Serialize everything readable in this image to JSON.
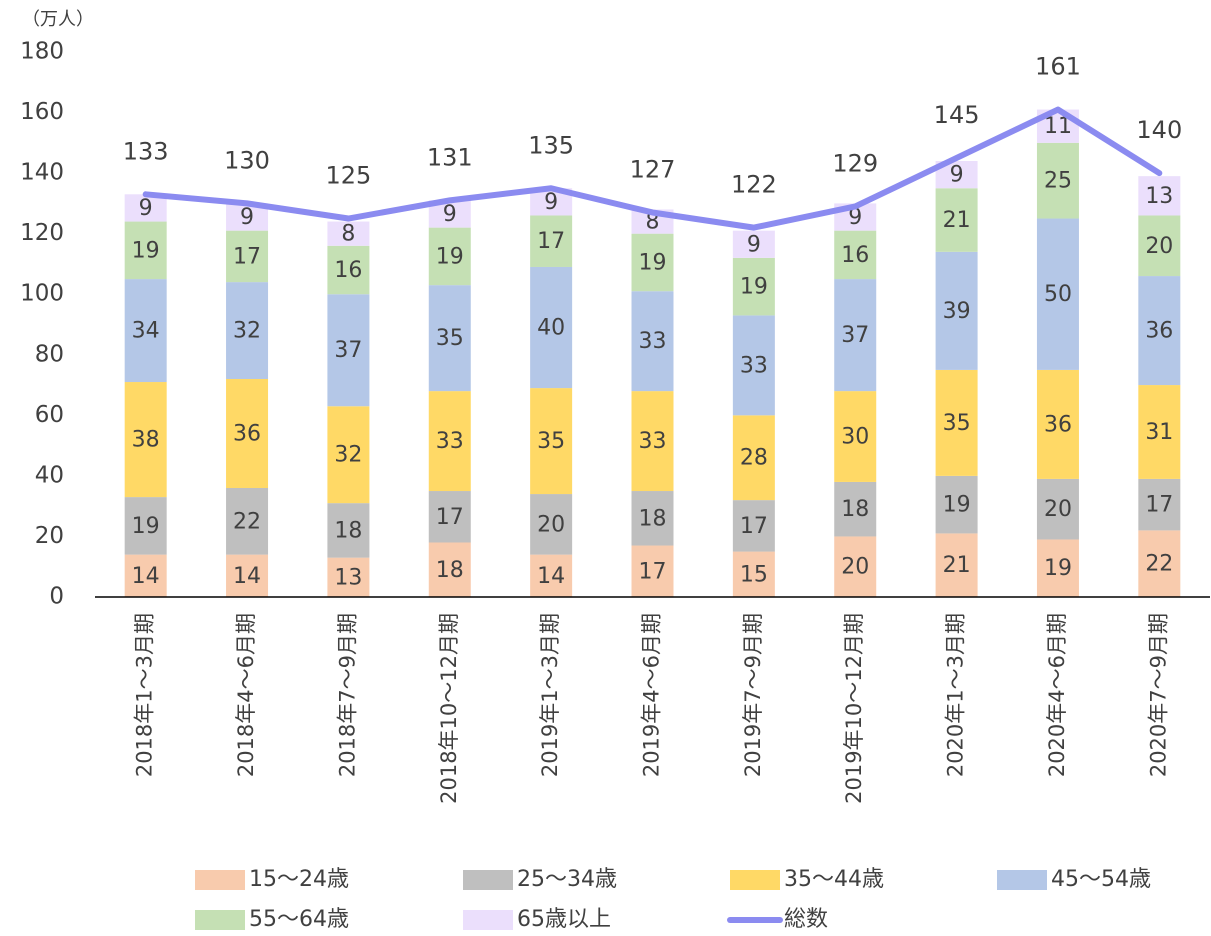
{
  "chart_data": {
    "type": "bar",
    "stacked": true,
    "unit_label": "（万人）",
    "categories": [
      "2018年1〜3月期",
      "2018年4〜6月期",
      "2018年7〜9月期",
      "2018年10〜12月期",
      "2019年1〜3月期",
      "2019年4〜6月期",
      "2019年7〜9月期",
      "2019年10〜12月期",
      "2020年1〜3月期",
      "2020年4〜6月期",
      "2020年7〜9月期"
    ],
    "series": [
      {
        "name": "15〜24歳",
        "color": "#f8cbad",
        "type": "bar",
        "values": [
          14,
          14,
          13,
          18,
          14,
          17,
          15,
          20,
          21,
          19,
          22
        ]
      },
      {
        "name": "25〜34歳",
        "color": "#bfbfbf",
        "type": "bar",
        "values": [
          19,
          22,
          18,
          17,
          20,
          18,
          17,
          18,
          19,
          20,
          17
        ]
      },
      {
        "name": "35〜44歳",
        "color": "#ffd966",
        "type": "bar",
        "values": [
          38,
          36,
          32,
          33,
          35,
          33,
          28,
          30,
          35,
          36,
          31
        ]
      },
      {
        "name": "45〜54歳",
        "color": "#b4c7e7",
        "type": "bar",
        "values": [
          34,
          32,
          37,
          35,
          40,
          33,
          33,
          37,
          39,
          50,
          36
        ]
      },
      {
        "name": "55〜64歳",
        "color": "#c5e0b4",
        "type": "bar",
        "values": [
          19,
          17,
          16,
          19,
          17,
          19,
          19,
          16,
          21,
          25,
          20
        ]
      },
      {
        "name": "65歳以上",
        "color": "#ebdffc",
        "type": "bar",
        "values": [
          9,
          9,
          8,
          9,
          9,
          8,
          9,
          9,
          9,
          11,
          13
        ]
      },
      {
        "name": "総数",
        "color": "#8b8bf0",
        "type": "line",
        "values": [
          133,
          130,
          125,
          131,
          135,
          127,
          122,
          129,
          145,
          161,
          140
        ]
      }
    ],
    "ylim": [
      0,
      180
    ],
    "yticks": [
      0,
      20,
      40,
      60,
      80,
      100,
      120,
      140,
      160,
      180
    ]
  }
}
